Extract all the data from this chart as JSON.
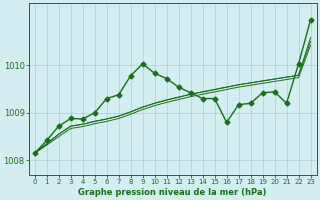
{
  "background_color": "#d4edf0",
  "grid_color": "#b0cccc",
  "line_color": "#1a6e1a",
  "xlabel": "Graphe pression niveau de la mer (hPa)",
  "xlim": [
    -0.5,
    23.5
  ],
  "ylim": [
    1007.7,
    1011.3
  ],
  "yticks": [
    1008,
    1009,
    1010
  ],
  "xticks": [
    0,
    1,
    2,
    3,
    4,
    5,
    6,
    7,
    8,
    9,
    10,
    11,
    12,
    13,
    14,
    15,
    16,
    17,
    18,
    19,
    20,
    21,
    22,
    23
  ],
  "s_straight1": [
    1008.15,
    1008.35,
    1008.55,
    1008.72,
    1008.76,
    1008.82,
    1008.87,
    1008.93,
    1009.02,
    1009.12,
    1009.2,
    1009.27,
    1009.33,
    1009.39,
    1009.44,
    1009.49,
    1009.54,
    1009.59,
    1009.63,
    1009.67,
    1009.71,
    1009.75,
    1009.79,
    1010.5
  ],
  "s_straight2": [
    1008.15,
    1008.35,
    1008.55,
    1008.72,
    1008.76,
    1008.82,
    1008.87,
    1008.93,
    1009.02,
    1009.12,
    1009.2,
    1009.27,
    1009.33,
    1009.39,
    1009.44,
    1009.49,
    1009.54,
    1009.59,
    1009.63,
    1009.67,
    1009.71,
    1009.75,
    1009.79,
    1010.58
  ],
  "s_straight3": [
    1008.15,
    1008.32,
    1008.5,
    1008.67,
    1008.71,
    1008.77,
    1008.82,
    1008.88,
    1008.97,
    1009.07,
    1009.15,
    1009.22,
    1009.28,
    1009.34,
    1009.39,
    1009.44,
    1009.49,
    1009.54,
    1009.58,
    1009.62,
    1009.66,
    1009.7,
    1009.74,
    1010.42
  ],
  "s_main": [
    1008.15,
    1008.42,
    1008.72,
    1008.88,
    1008.87,
    1009.0,
    1009.3,
    1009.38,
    1009.78,
    1010.03,
    1009.83,
    1009.72,
    1009.54,
    1009.42,
    1009.3,
    1009.3,
    1008.8,
    1009.17,
    1009.2,
    1009.42,
    1009.44,
    1009.2,
    1010.03,
    1010.95
  ],
  "markersize": 2.5,
  "linewidth_thin": 0.7,
  "linewidth_main": 1.0
}
